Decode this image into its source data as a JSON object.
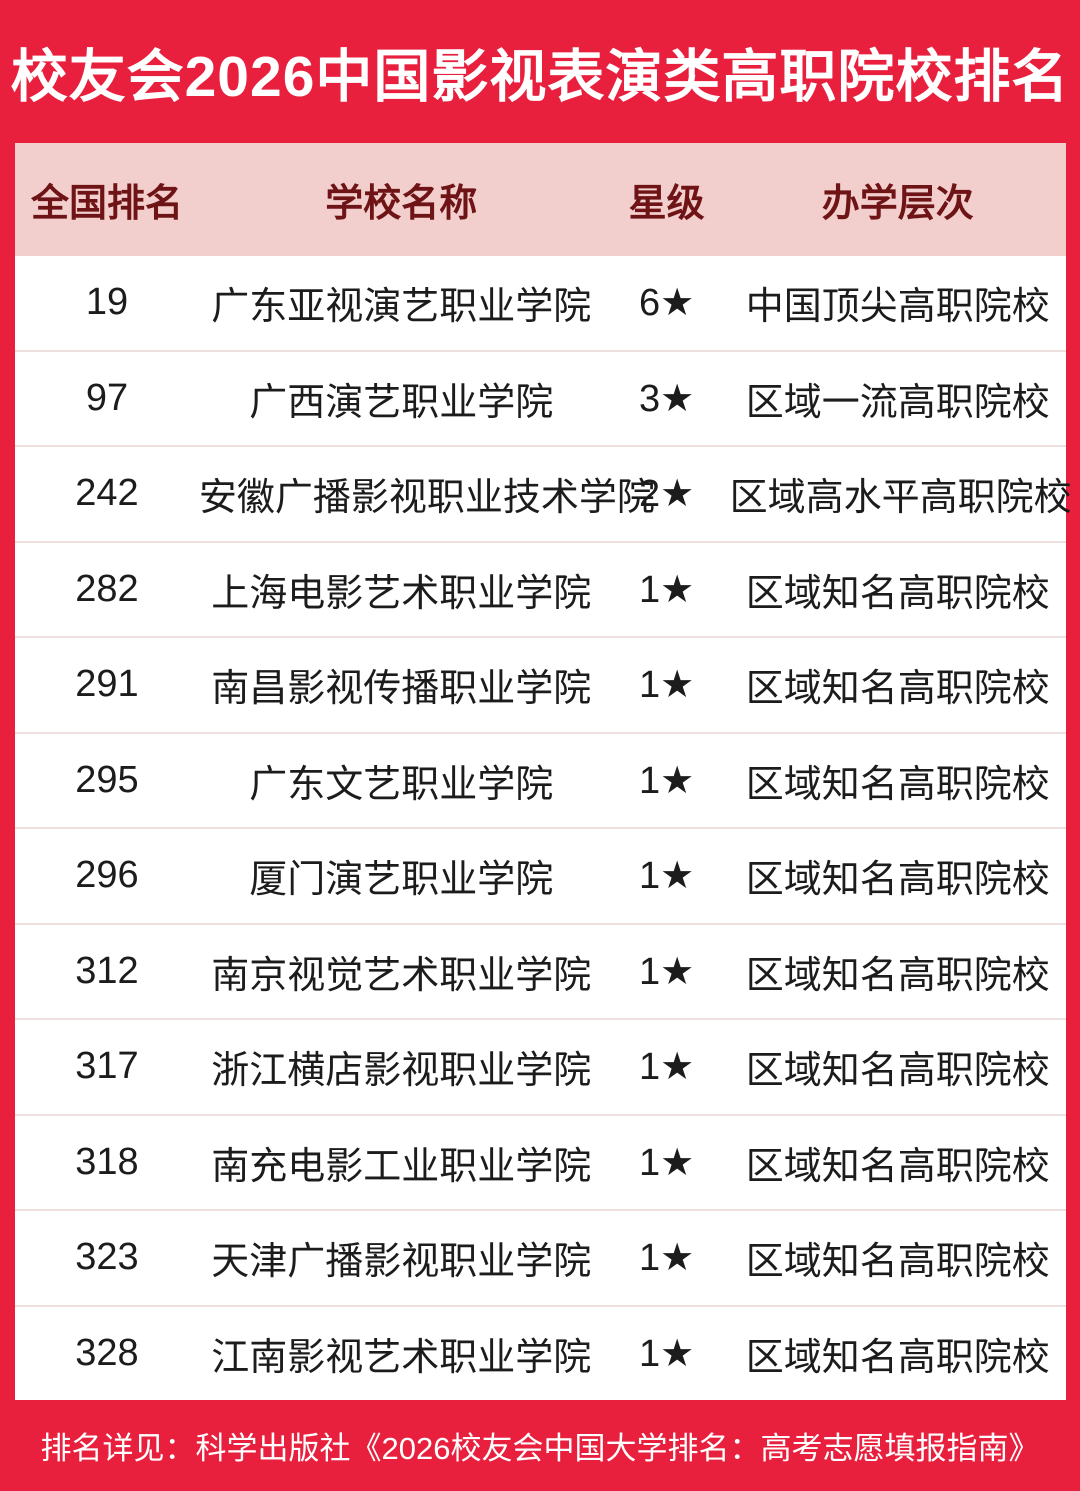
{
  "title": "校友会2026中国影视表演类高职院校排名",
  "columns": [
    "全国排名",
    "学校名称",
    "星级",
    "办学层次"
  ],
  "rows": [
    {
      "rank": "19",
      "school": "广东亚视演艺职业学院",
      "stars": "6★",
      "level": "中国顶尖高职院校"
    },
    {
      "rank": "97",
      "school": "广西演艺职业学院",
      "stars": "3★",
      "level": "区域一流高职院校"
    },
    {
      "rank": "242",
      "school": "安徽广播影视职业技术学院",
      "stars": "2★",
      "level": "区域高水平高职院校"
    },
    {
      "rank": "282",
      "school": "上海电影艺术职业学院",
      "stars": "1★",
      "level": "区域知名高职院校"
    },
    {
      "rank": "291",
      "school": "南昌影视传播职业学院",
      "stars": "1★",
      "level": "区域知名高职院校"
    },
    {
      "rank": "295",
      "school": "广东文艺职业学院",
      "stars": "1★",
      "level": "区域知名高职院校"
    },
    {
      "rank": "296",
      "school": "厦门演艺职业学院",
      "stars": "1★",
      "level": "区域知名高职院校"
    },
    {
      "rank": "312",
      "school": "南京视觉艺术职业学院",
      "stars": "1★",
      "level": "区域知名高职院校"
    },
    {
      "rank": "317",
      "school": "浙江横店影视职业学院",
      "stars": "1★",
      "level": "区域知名高职院校"
    },
    {
      "rank": "318",
      "school": "南充电影工业职业学院",
      "stars": "1★",
      "level": "区域知名高职院校"
    },
    {
      "rank": "323",
      "school": "天津广播影视职业学院",
      "stars": "1★",
      "level": "区域知名高职院校"
    },
    {
      "rank": "328",
      "school": "江南影视艺术职业学院",
      "stars": "1★",
      "level": "区域知名高职院校"
    }
  ],
  "footer": {
    "note": "排名详见：科学出版社《2026校友会中国大学排名：高考志愿填报指南》"
  },
  "colors": {
    "accent_red": "#E8203E",
    "header_bg": "#F2CECC",
    "header_text": "#6E1416",
    "row_text": "#1C1C1C",
    "separator": "#EFE0E0"
  }
}
